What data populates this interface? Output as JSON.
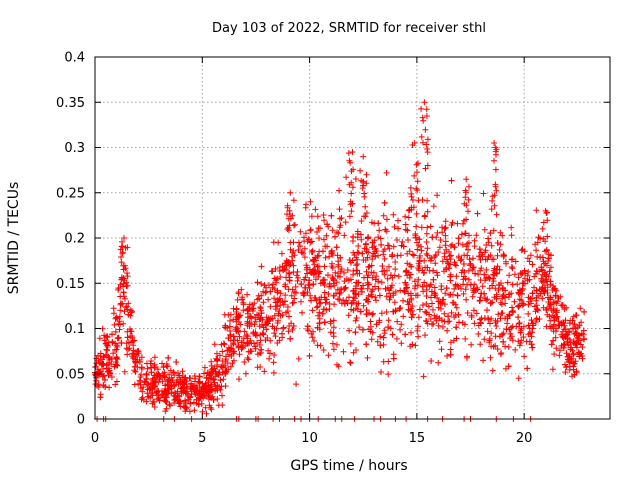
{
  "chart_data": {
    "type": "scatter",
    "title": "Day 103 of 2022, SRMTID for receiver sthl",
    "xlabel": "GPS time / hours",
    "ylabel": "SRMTID / TECUs",
    "xlim": [
      0,
      24
    ],
    "ylim": [
      0,
      0.4
    ],
    "xticks": [
      0,
      5,
      10,
      15,
      20
    ],
    "yticks": [
      0,
      0.05,
      0.1,
      0.15,
      0.2,
      0.25,
      0.3,
      0.35,
      0.4
    ],
    "xtick_labels": [
      "0",
      "5",
      "10",
      "15",
      "20"
    ],
    "ytick_labels": [
      "0",
      "0.05",
      "0.1",
      "0.15",
      "0.2",
      "0.25",
      "0.3",
      "0.35",
      "0.4"
    ],
    "grid": true,
    "marker_color": "#ff0000",
    "marker": "plus",
    "trend": {
      "x": [
        0,
        0.5,
        1.0,
        1.3,
        1.5,
        1.8,
        2.0,
        3.0,
        4.0,
        5.0,
        5.5,
        6.0,
        6.5,
        7.0,
        8.0,
        9.0,
        10.0,
        11.0,
        12.0,
        13.0,
        14.0,
        15.0,
        16.0,
        17.0,
        18.0,
        19.0,
        20.0,
        21.0,
        21.5,
        22.0,
        22.8
      ],
      "y": [
        0.05,
        0.065,
        0.075,
        0.15,
        0.12,
        0.07,
        0.05,
        0.04,
        0.03,
        0.03,
        0.04,
        0.06,
        0.1,
        0.1,
        0.11,
        0.15,
        0.16,
        0.15,
        0.16,
        0.15,
        0.16,
        0.17,
        0.15,
        0.16,
        0.15,
        0.13,
        0.13,
        0.15,
        0.12,
        0.08,
        0.09
      ]
    },
    "spread": {
      "x": [
        0,
        1.3,
        2.0,
        5.0,
        6.5,
        8.0,
        9.0,
        12.0,
        15.0,
        18.0,
        20.0,
        21.0,
        22.0,
        22.8
      ],
      "y": [
        0.015,
        0.04,
        0.02,
        0.015,
        0.03,
        0.04,
        0.05,
        0.06,
        0.06,
        0.05,
        0.045,
        0.04,
        0.025,
        0.025
      ]
    },
    "peaks": [
      {
        "x": 1.35,
        "y": 0.2
      },
      {
        "x": 9.1,
        "y": 0.25
      },
      {
        "x": 12.0,
        "y": 0.295
      },
      {
        "x": 12.5,
        "y": 0.29
      },
      {
        "x": 14.9,
        "y": 0.305
      },
      {
        "x": 15.35,
        "y": 0.35
      },
      {
        "x": 17.3,
        "y": 0.265
      },
      {
        "x": 18.6,
        "y": 0.305
      },
      {
        "x": 21.0,
        "y": 0.23
      }
    ],
    "zero_x": [
      0.1,
      0.4,
      0.5,
      3.2,
      3.7,
      4.5,
      6.6,
      6.7,
      7.5,
      7.6,
      8.3,
      8.6,
      9.3,
      9.6,
      10.0,
      10.4,
      11.2,
      11.5,
      12.1,
      13.0,
      13.3,
      14.0,
      14.5,
      15.5,
      16.2,
      17.2,
      17.5,
      18.7,
      19.5,
      20.3
    ]
  }
}
